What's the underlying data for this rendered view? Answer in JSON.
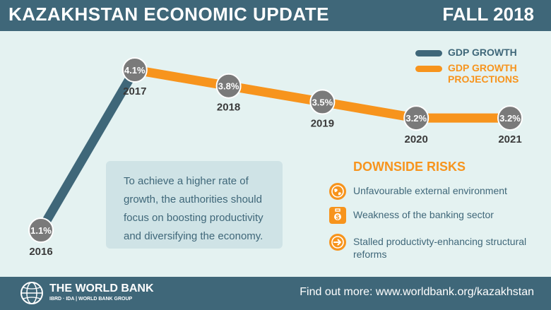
{
  "header": {
    "title": "KAZAKHSTAN ECONOMIC UPDATE",
    "season": "FALL 2018"
  },
  "chart_data": {
    "type": "line",
    "x": [
      "2016",
      "2017",
      "2018",
      "2019",
      "2020",
      "2021"
    ],
    "series": [
      {
        "name": "GDP GROWTH",
        "values": [
          1.1,
          4.1,
          null,
          null,
          null,
          null
        ],
        "color": "#3f6779"
      },
      {
        "name": "GDP GROWTH PROJECTIONS",
        "values": [
          null,
          4.1,
          3.8,
          3.5,
          3.2,
          3.2
        ],
        "color": "#f7941d"
      }
    ],
    "data_labels": [
      "1.1%",
      "4.1%",
      "3.8%",
      "3.5%",
      "3.2%",
      "3.2%"
    ],
    "legend_position": "top-right",
    "grid": false
  },
  "legend": {
    "items": [
      {
        "label": "GDP GROWTH",
        "color": "#3f6779"
      },
      {
        "label": "GDP GROWTH PROJECTIONS",
        "color": "#f7941d"
      }
    ]
  },
  "callout": {
    "text": "To achieve a higher rate of growth, the authorities should focus on boosting productivity and diversifying the economy."
  },
  "risks": {
    "title": "DOWNSIDE RISKS",
    "items": [
      {
        "icon": "globe-icon",
        "text": "Unfavourable external environment"
      },
      {
        "icon": "briefcase-dollar-icon",
        "text": "Weakness of the banking sector"
      },
      {
        "icon": "arrow-right-icon",
        "text": "Stalled productivty-enhancing structural reforms"
      }
    ]
  },
  "footer": {
    "org": "THE WORLD BANK",
    "org_sub": "IBRD · IDA | WORLD BANK GROUP",
    "link": "Find out more: www.worldbank.org/kazakhstan"
  },
  "colors": {
    "brand": "#3f6779",
    "accent": "#f7941d",
    "background": "#e4f2f1",
    "marker": "#7a7a7a"
  }
}
